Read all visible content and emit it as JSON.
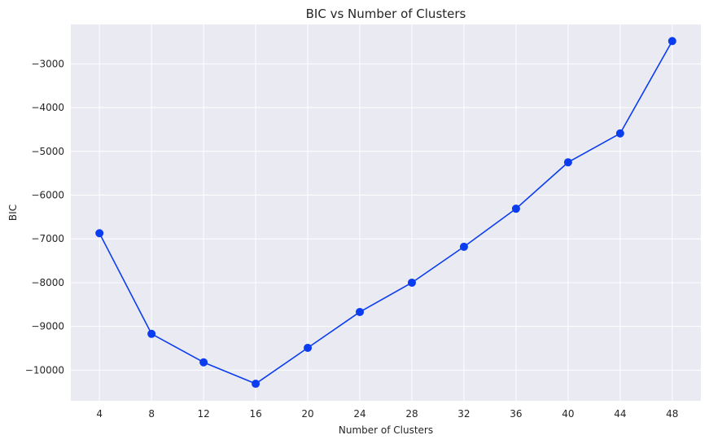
{
  "chart_data": {
    "type": "line",
    "title": "BIC vs Number of Clusters",
    "xlabel": "Number of Clusters",
    "ylabel": "BIC",
    "x": [
      4,
      8,
      12,
      16,
      20,
      24,
      28,
      32,
      36,
      40,
      44,
      48
    ],
    "y": [
      -6870,
      -9170,
      -9820,
      -10310,
      -9490,
      -8670,
      -8000,
      -7180,
      -6310,
      -5250,
      -4590,
      -2480
    ],
    "xlim": [
      1.8,
      50.2
    ],
    "ylim": [
      -10700,
      -2100
    ],
    "xticks": [
      4,
      8,
      12,
      16,
      20,
      24,
      28,
      32,
      36,
      40,
      44,
      48
    ],
    "xtick_labels": [
      "4",
      "8",
      "12",
      "16",
      "20",
      "24",
      "28",
      "32",
      "36",
      "40",
      "44",
      "48"
    ],
    "yticks": [
      -10000,
      -9000,
      -8000,
      -7000,
      -6000,
      -5000,
      -4000,
      -3000
    ],
    "ytick_labels": [
      "−10000",
      "−9000",
      "−8000",
      "−7000",
      "−6000",
      "−5000",
      "−4000",
      "−3000"
    ],
    "grid": true,
    "colors": {
      "line": "#0a3cf0",
      "plot_background": "#eaeaf2",
      "grid": "#ffffff",
      "text": "#262626"
    }
  }
}
